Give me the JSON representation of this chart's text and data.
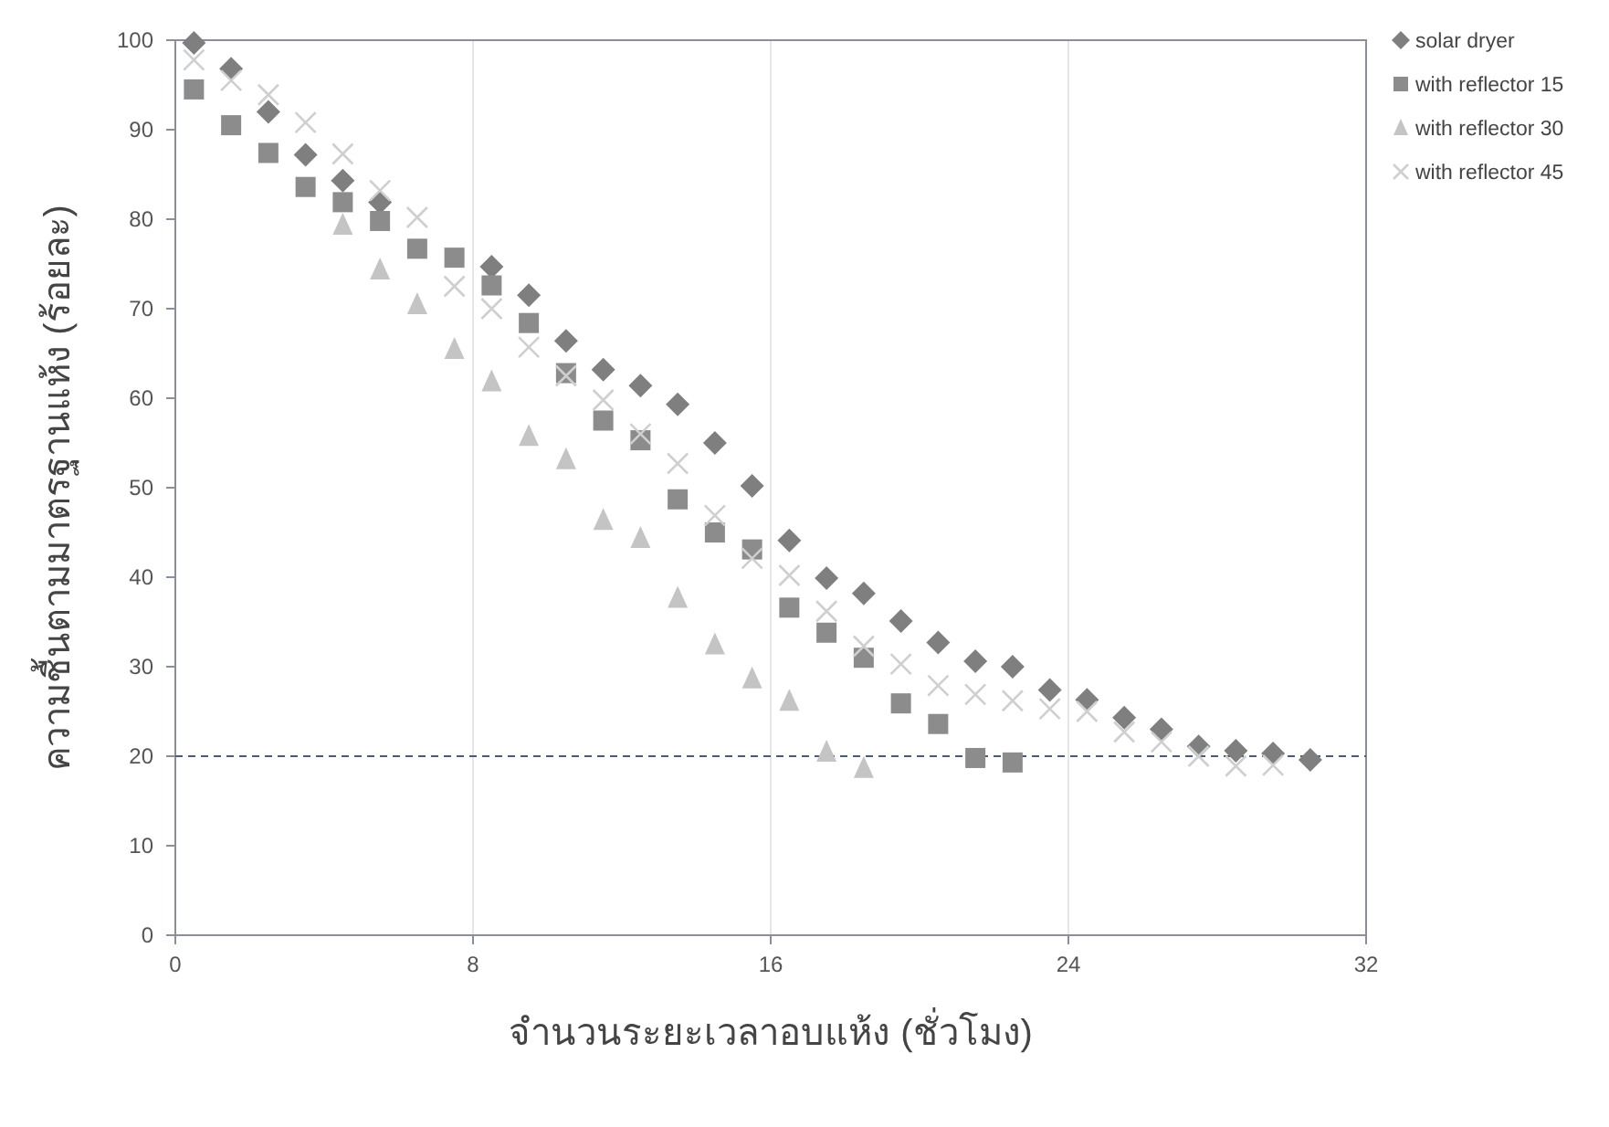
{
  "chart_data": {
    "type": "scatter",
    "xlabel": "จำนวนระยะเวลาอบแห้ง (ชั่วโมง)",
    "ylabel": "ความชื้นตามมาตรฐานแห้ง (ร้อยละ)",
    "xlim": [
      0,
      32
    ],
    "xticks": [
      0,
      8,
      16,
      24,
      32
    ],
    "ylim": [
      0,
      100
    ],
    "yticks": [
      0,
      10,
      20,
      30,
      40,
      50,
      60,
      70,
      80,
      90,
      100
    ],
    "grid": "x",
    "legend": "top right",
    "ref_lines": [
      {
        "axis": "y",
        "value": 20,
        "color": "#4a5a7a",
        "line_style": "dashed"
      }
    ],
    "series": [
      {
        "name": "solar dryer",
        "color": "#7f7f7f",
        "marker": "diamond",
        "x": [
          0.5,
          1.5,
          2.5,
          3.5,
          4.5,
          5.5,
          8.5,
          9.5,
          10.5,
          11.5,
          12.5,
          13.5,
          14.5,
          15.5,
          16.5,
          17.5,
          18.5,
          19.5,
          20.5,
          21.5,
          22.5,
          23.5,
          24.5,
          25.5,
          26.5,
          27.5,
          28.5,
          29.5,
          30.5
        ],
        "values": [
          99.7,
          96.8,
          92.0,
          87.2,
          84.3,
          81.9,
          74.7,
          71.5,
          66.4,
          63.2,
          61.4,
          59.3,
          55.0,
          50.2,
          44.1,
          39.9,
          38.2,
          35.1,
          32.7,
          30.6,
          30.0,
          27.4,
          26.3,
          24.3,
          23.0,
          21.1,
          20.6,
          20.3,
          19.6
        ]
      },
      {
        "name": "with reflector 15",
        "color": "#8c8c8c",
        "marker": "square",
        "x": [
          0.5,
          1.5,
          2.5,
          3.5,
          4.5,
          5.5,
          6.5,
          7.5,
          8.5,
          9.5,
          10.5,
          11.5,
          12.5,
          13.5,
          14.5,
          15.5,
          16.5,
          17.5,
          18.5,
          19.5,
          20.5,
          21.5,
          22.5
        ],
        "values": [
          94.5,
          90.5,
          87.4,
          83.6,
          81.9,
          79.8,
          76.7,
          75.7,
          72.6,
          68.4,
          62.8,
          57.5,
          55.3,
          48.7,
          45.0,
          43.1,
          36.6,
          33.8,
          31.0,
          25.9,
          23.6,
          19.8,
          19.3
        ]
      },
      {
        "name": "with reflector 30",
        "color": "#c4c4c4",
        "marker": "triangle",
        "x": [
          4.5,
          5.5,
          6.5,
          7.5,
          8.5,
          9.5,
          10.5,
          11.5,
          12.5,
          13.5,
          14.5,
          15.5,
          16.5,
          17.5,
          18.5
        ],
        "values": [
          79.4,
          74.4,
          70.5,
          65.5,
          61.9,
          55.8,
          53.2,
          46.4,
          44.4,
          37.7,
          32.5,
          28.7,
          26.2,
          20.5,
          18.7
        ]
      },
      {
        "name": "with reflector 45",
        "color": "#cfcfcf",
        "marker": "cross",
        "x": [
          0.5,
          1.5,
          2.5,
          3.5,
          4.5,
          5.5,
          6.5,
          7.5,
          8.5,
          9.5,
          10.5,
          11.5,
          12.5,
          13.5,
          14.5,
          15.5,
          16.5,
          17.5,
          18.5,
          19.5,
          20.5,
          21.5,
          22.5,
          23.5,
          24.5,
          25.5,
          26.5,
          27.5,
          28.5,
          29.5
        ],
        "values": [
          97.8,
          95.5,
          93.9,
          90.8,
          87.3,
          83.2,
          80.2,
          72.5,
          70,
          65.7,
          62.5,
          59.8,
          56,
          52.7,
          46.9,
          42.1,
          40.2,
          36.2,
          32.3,
          30.3,
          27.9,
          26.9,
          26.2,
          25.3,
          25.0,
          22.7,
          21.6,
          20.0,
          18.9,
          19.0
        ]
      }
    ]
  }
}
